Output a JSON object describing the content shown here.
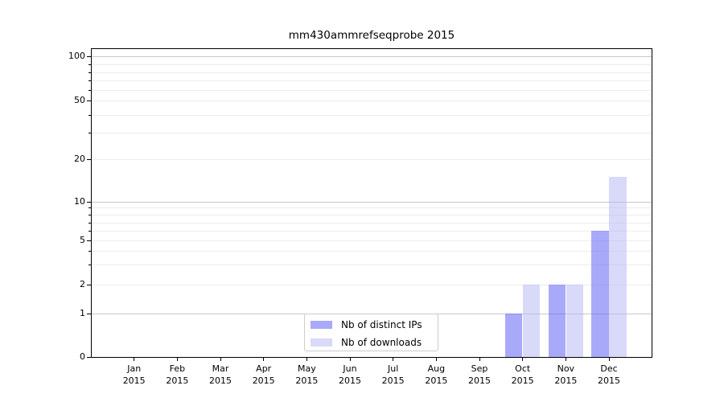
{
  "chart_data": {
    "type": "bar",
    "title": "mm430ammrefseqprobe 2015",
    "categories": [
      "Jan",
      "Feb",
      "Mar",
      "Apr",
      "May",
      "Jun",
      "Jul",
      "Aug",
      "Sep",
      "Oct",
      "Nov",
      "Dec"
    ],
    "x_year_line": "2015",
    "series": [
      {
        "name": "Nb of distinct IPs",
        "color": "rgba(83,83,245,0.5)",
        "legend_color": "#a9a9fa",
        "values": [
          0,
          0,
          0,
          0,
          0,
          0,
          0,
          0,
          0,
          1,
          2,
          6
        ]
      },
      {
        "name": "Nb of downloads",
        "color": "rgba(179,179,243,0.5)",
        "legend_color": "#d9d9f9",
        "values": [
          0,
          0,
          0,
          0,
          0,
          0,
          0,
          0,
          0,
          2,
          2,
          15
        ]
      }
    ],
    "y_axis": {
      "scale": "log-with-linear-zero",
      "range": [
        0,
        100
      ],
      "labeled_ticks": [
        100,
        50,
        20,
        10,
        5,
        2,
        1,
        0
      ],
      "minor_ticks": [
        90,
        80,
        70,
        60,
        40,
        30,
        9,
        8,
        7,
        6,
        4,
        3
      ]
    },
    "legend": {
      "position": "lower center"
    },
    "grid": {
      "on": true,
      "major_color": "#c8c8c8",
      "minor_color": "#ececec"
    }
  }
}
